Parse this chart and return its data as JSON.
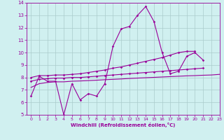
{
  "xlabel": "Windchill (Refroidissement éolien,°C)",
  "x_values": [
    0,
    1,
    2,
    3,
    4,
    5,
    6,
    7,
    8,
    9,
    10,
    11,
    12,
    13,
    14,
    15,
    16,
    17,
    18,
    19,
    20,
    21,
    22,
    23
  ],
  "y_main": [
    6.5,
    8.1,
    7.7,
    7.7,
    5.0,
    7.5,
    6.2,
    6.7,
    6.5,
    7.5,
    10.5,
    11.9,
    12.1,
    13.0,
    13.7,
    12.5,
    10.0,
    8.3,
    8.5,
    9.7,
    10.0,
    9.4,
    null,
    null
  ],
  "y_upper": [
    8.0,
    8.15,
    8.15,
    8.2,
    8.2,
    8.25,
    8.3,
    8.4,
    8.5,
    8.6,
    8.75,
    8.85,
    9.0,
    9.15,
    9.3,
    9.45,
    9.6,
    9.8,
    10.0,
    10.1,
    10.1,
    null,
    null,
    null
  ],
  "y_mid": [
    7.7,
    7.85,
    7.9,
    7.95,
    7.95,
    8.0,
    8.0,
    8.05,
    8.1,
    8.15,
    8.2,
    8.25,
    8.3,
    8.35,
    8.4,
    8.45,
    8.5,
    8.55,
    8.6,
    8.65,
    8.7,
    8.75,
    null,
    null
  ],
  "y_lower": [
    7.2,
    7.5,
    7.6,
    7.65,
    7.65,
    7.7,
    7.72,
    7.75,
    7.78,
    7.82,
    7.85,
    7.88,
    7.92,
    7.95,
    7.98,
    8.01,
    8.04,
    8.07,
    8.1,
    8.13,
    8.15,
    8.18,
    8.2,
    8.25
  ],
  "color": "#990099",
  "bg_color": "#d0f0f0",
  "grid_color": "#aacccc",
  "ylim": [
    5,
    14
  ],
  "xlim": [
    -0.5,
    23
  ],
  "yticks": [
    5,
    6,
    7,
    8,
    9,
    10,
    11,
    12,
    13,
    14
  ],
  "xticks": [
    0,
    1,
    2,
    3,
    4,
    5,
    6,
    7,
    8,
    9,
    10,
    11,
    12,
    13,
    14,
    15,
    16,
    17,
    18,
    19,
    20,
    21,
    22,
    23
  ]
}
